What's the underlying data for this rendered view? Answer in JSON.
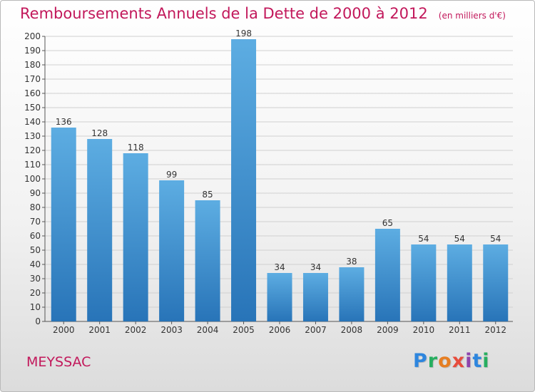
{
  "chart_data": {
    "type": "bar",
    "title": "Remboursements Annuels de la Dette de 2000 à 2012",
    "unit_label": "(en milliers d'€)",
    "categories": [
      "2000",
      "2001",
      "2002",
      "2003",
      "2004",
      "2005",
      "2006",
      "2007",
      "2008",
      "2009",
      "2010",
      "2011",
      "2012"
    ],
    "values": [
      136,
      128,
      118,
      99,
      85,
      198,
      34,
      34,
      38,
      65,
      54,
      54,
      54
    ],
    "ylim": [
      0,
      200
    ],
    "yticks": [
      0,
      10,
      20,
      30,
      40,
      50,
      60,
      70,
      80,
      90,
      100,
      110,
      120,
      130,
      140,
      150,
      160,
      170,
      180,
      190,
      200
    ],
    "grid": true,
    "bar_color_top": "#5dade2",
    "bar_color_bottom": "#2874b8",
    "label_color": "#333333"
  },
  "commune": "MEYSSAC",
  "brand": {
    "letters": [
      "P",
      "r",
      "o",
      "x",
      "i",
      "t",
      "i"
    ],
    "colors": [
      "#2e86de",
      "#27ae60",
      "#e67e22",
      "#e74c3c",
      "#8e44ad",
      "#2e86de",
      "#27ae60"
    ]
  },
  "colors": {
    "accent": "#c2185b",
    "axis": "#555555",
    "grid": "#d0d0d0"
  }
}
